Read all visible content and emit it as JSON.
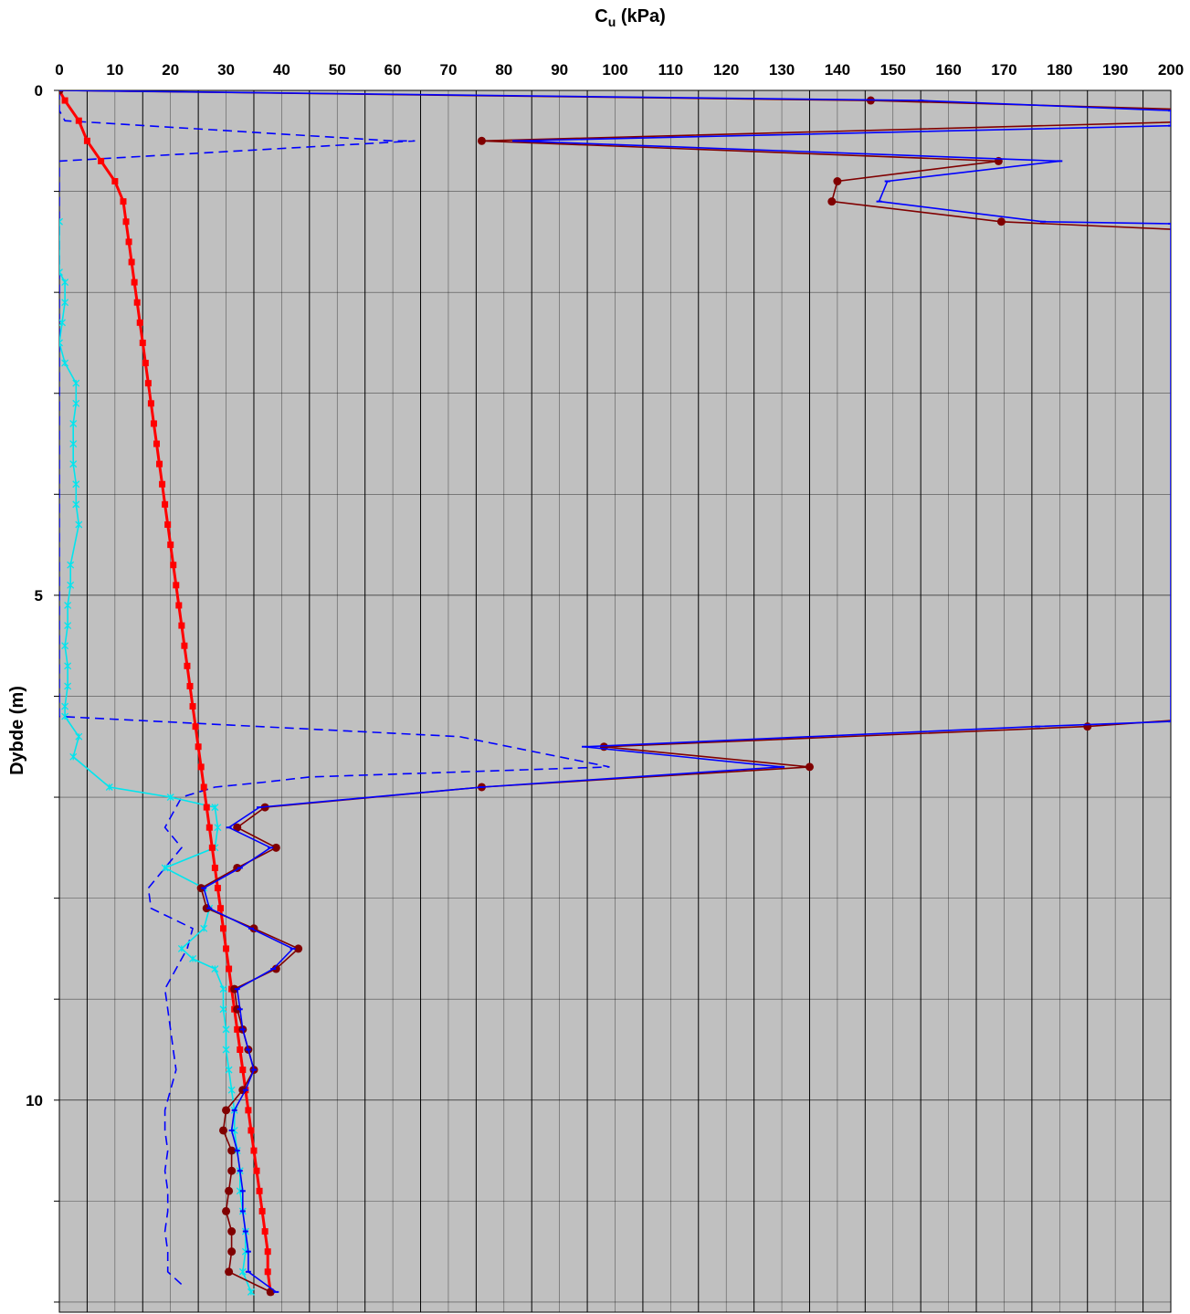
{
  "chart_data": {
    "type": "line",
    "x_axis": {
      "label_main": "C",
      "label_sub": "u",
      "label_unit": " (kPa)",
      "position": "top",
      "range": [
        0,
        200
      ],
      "major_step": 10,
      "minor_step": 5,
      "tick_labels": [
        "0",
        "10",
        "20",
        "30",
        "40",
        "50",
        "60",
        "70",
        "80",
        "90",
        "100",
        "110",
        "120",
        "130",
        "140",
        "150",
        "160",
        "170",
        "180",
        "190",
        "200"
      ]
    },
    "y_axis": {
      "label": "Dybde (m)",
      "range": [
        0,
        12.1
      ],
      "inverted": true,
      "major_step": 5,
      "minor_step": 1,
      "tick_labels": [
        "0",
        "5",
        "10"
      ]
    },
    "grid": true,
    "legend": "none",
    "colors": {
      "plot_background": "#c0c0c0",
      "grid": "#000000",
      "dark_red": "#800000",
      "blue": "#0000ff",
      "dashed_blue": "#0000ff",
      "cyan": "#00e5ee",
      "red": "#ff0000"
    },
    "series": [
      {
        "style": "dark-red-dots",
        "color": "#800000",
        "points": [
          [
            0,
            0
          ],
          [
            146,
            0.1
          ],
          [
            210,
            0.2
          ],
          [
            210,
            0.3
          ],
          [
            76,
            0.5
          ],
          [
            169,
            0.7
          ],
          [
            140,
            0.9
          ],
          [
            139,
            1.1
          ],
          [
            169.5,
            1.3
          ],
          [
            210,
            1.4
          ],
          [
            210,
            6.2
          ],
          [
            185,
            6.3
          ],
          [
            98,
            6.5
          ],
          [
            135,
            6.7
          ],
          [
            76,
            6.9
          ],
          [
            37,
            7.1
          ],
          [
            32,
            7.3
          ],
          [
            39,
            7.5
          ],
          [
            32,
            7.7
          ],
          [
            25.5,
            7.9
          ],
          [
            26.5,
            8.1
          ],
          [
            35,
            8.3
          ],
          [
            43,
            8.5
          ],
          [
            39,
            8.7
          ],
          [
            31.5,
            8.9
          ],
          [
            32,
            9.1
          ],
          [
            33,
            9.3
          ],
          [
            34,
            9.5
          ],
          [
            35,
            9.7
          ],
          [
            33,
            9.9
          ],
          [
            30,
            10.1
          ],
          [
            29.5,
            10.3
          ],
          [
            31,
            10.5
          ],
          [
            31,
            10.7
          ],
          [
            30.5,
            10.9
          ],
          [
            30,
            11.1
          ],
          [
            31,
            11.3
          ],
          [
            31,
            11.5
          ],
          [
            30.5,
            11.7
          ],
          [
            38,
            11.9
          ]
        ]
      },
      {
        "style": "blue-line",
        "color": "#0000ff",
        "points": [
          [
            0,
            0
          ],
          [
            155,
            0.1
          ],
          [
            200,
            0.2
          ],
          [
            200,
            0.35
          ],
          [
            82,
            0.5
          ],
          [
            180,
            0.7
          ],
          [
            149,
            0.9
          ],
          [
            147.5,
            1.1
          ],
          [
            177,
            1.3
          ],
          [
            200,
            1.32
          ],
          [
            200,
            6.25
          ],
          [
            176,
            6.3
          ],
          [
            94.5,
            6.5
          ],
          [
            130,
            6.7
          ],
          [
            76,
            6.9
          ],
          [
            36,
            7.1
          ],
          [
            30.5,
            7.3
          ],
          [
            38,
            7.5
          ],
          [
            32.5,
            7.7
          ],
          [
            26,
            7.9
          ],
          [
            27,
            8.1
          ],
          [
            34.5,
            8.3
          ],
          [
            42,
            8.5
          ],
          [
            38.5,
            8.7
          ],
          [
            32,
            8.9
          ],
          [
            32.5,
            9.1
          ],
          [
            33,
            9.3
          ],
          [
            34,
            9.5
          ],
          [
            35,
            9.7
          ],
          [
            33.5,
            9.9
          ],
          [
            31.5,
            10.1
          ],
          [
            31,
            10.3
          ],
          [
            32,
            10.5
          ],
          [
            32.5,
            10.7
          ],
          [
            33,
            10.9
          ],
          [
            33,
            11.1
          ],
          [
            33.5,
            11.3
          ],
          [
            34,
            11.5
          ],
          [
            34,
            11.7
          ],
          [
            39,
            11.9
          ]
        ]
      },
      {
        "style": "dashed-blue",
        "color": "#0000ff",
        "points": [
          [
            0,
            0
          ],
          [
            0,
            0.2
          ],
          [
            1,
            0.3
          ],
          [
            60,
            0.5
          ],
          [
            64,
            0.5
          ],
          [
            0,
            0.7
          ],
          [
            0,
            1.1
          ],
          [
            0,
            2
          ],
          [
            0,
            4
          ],
          [
            0,
            6
          ],
          [
            0,
            6.2
          ],
          [
            72,
            6.4
          ],
          [
            99,
            6.7
          ],
          [
            45,
            6.8
          ],
          [
            37,
            6.85
          ],
          [
            28,
            6.9
          ],
          [
            22,
            7
          ],
          [
            19,
            7.3
          ],
          [
            22,
            7.5
          ],
          [
            19,
            7.7
          ],
          [
            16,
            7.9
          ],
          [
            16.5,
            8.1
          ],
          [
            24,
            8.3
          ],
          [
            23,
            8.5
          ],
          [
            21,
            8.7
          ],
          [
            19,
            8.9
          ],
          [
            19.5,
            9.1
          ],
          [
            20,
            9.3
          ],
          [
            20.5,
            9.5
          ],
          [
            21,
            9.7
          ],
          [
            20,
            9.9
          ],
          [
            19,
            10.1
          ],
          [
            19,
            10.3
          ],
          [
            19.5,
            10.5
          ],
          [
            19,
            10.7
          ],
          [
            19.5,
            10.9
          ],
          [
            19.5,
            11.1
          ],
          [
            19,
            11.3
          ],
          [
            19.5,
            11.5
          ],
          [
            19.5,
            11.7
          ],
          [
            22.5,
            11.85
          ]
        ]
      },
      {
        "style": "cyan-stars",
        "color": "#00e5ee",
        "points": [
          [
            0,
            1.3
          ],
          [
            0,
            1.8
          ],
          [
            1,
            1.9
          ],
          [
            1,
            2.1
          ],
          [
            0.5,
            2.3
          ],
          [
            0,
            2.5
          ],
          [
            1,
            2.7
          ],
          [
            3,
            2.9
          ],
          [
            3,
            3.1
          ],
          [
            2.5,
            3.3
          ],
          [
            2.5,
            3.5
          ],
          [
            2.5,
            3.7
          ],
          [
            3,
            3.9
          ],
          [
            3,
            4.1
          ],
          [
            3.5,
            4.3
          ],
          [
            2,
            4.7
          ],
          [
            2,
            4.9
          ],
          [
            1.5,
            5.1
          ],
          [
            1.5,
            5.3
          ],
          [
            1,
            5.5
          ],
          [
            1.5,
            5.7
          ],
          [
            1.5,
            5.9
          ],
          [
            1,
            6.1
          ],
          [
            1,
            6.2
          ],
          [
            3.5,
            6.4
          ],
          [
            2.5,
            6.6
          ],
          [
            9,
            6.9
          ],
          [
            20,
            7.0
          ],
          [
            28,
            7.1
          ],
          [
            28.5,
            7.3
          ],
          [
            28,
            7.5
          ],
          [
            19,
            7.7
          ],
          [
            26,
            7.9
          ],
          [
            27,
            8.1
          ],
          [
            26,
            8.3
          ],
          [
            22,
            8.5
          ],
          [
            24,
            8.6
          ],
          [
            28,
            8.7
          ],
          [
            29.5,
            8.9
          ],
          [
            29.5,
            9.1
          ],
          [
            30,
            9.3
          ],
          [
            30,
            9.5
          ],
          [
            30.5,
            9.7
          ],
          [
            31,
            9.9
          ],
          [
            31.5,
            10.1
          ],
          [
            31.5,
            10.3
          ],
          [
            32,
            10.5
          ],
          [
            32.5,
            10.7
          ],
          [
            32.5,
            10.9
          ],
          [
            33,
            11.1
          ],
          [
            33.5,
            11.3
          ],
          [
            33.5,
            11.5
          ],
          [
            33,
            11.7
          ],
          [
            34.5,
            11.9
          ]
        ]
      },
      {
        "style": "red-squares",
        "color": "#ff0000",
        "points": [
          [
            0,
            0
          ],
          [
            1,
            0.1
          ],
          [
            3.5,
            0.3
          ],
          [
            5,
            0.5
          ],
          [
            7.5,
            0.7
          ],
          [
            10,
            0.9
          ],
          [
            11.5,
            1.1
          ],
          [
            12,
            1.3
          ],
          [
            12.5,
            1.5
          ],
          [
            13,
            1.7
          ],
          [
            13.5,
            1.9
          ],
          [
            14,
            2.1
          ],
          [
            14.5,
            2.3
          ],
          [
            15,
            2.5
          ],
          [
            15.5,
            2.7
          ],
          [
            16,
            2.9
          ],
          [
            16.5,
            3.1
          ],
          [
            17,
            3.3
          ],
          [
            17.5,
            3.5
          ],
          [
            18,
            3.7
          ],
          [
            18.5,
            3.9
          ],
          [
            19,
            4.1
          ],
          [
            19.5,
            4.3
          ],
          [
            20,
            4.5
          ],
          [
            20.5,
            4.7
          ],
          [
            21,
            4.9
          ],
          [
            21.5,
            5.1
          ],
          [
            22,
            5.3
          ],
          [
            22.5,
            5.5
          ],
          [
            23,
            5.7
          ],
          [
            23.5,
            5.9
          ],
          [
            24,
            6.1
          ],
          [
            24.5,
            6.3
          ],
          [
            25,
            6.5
          ],
          [
            25.5,
            6.7
          ],
          [
            26,
            6.9
          ],
          [
            26.5,
            7.1
          ],
          [
            27,
            7.3
          ],
          [
            27.5,
            7.5
          ],
          [
            28,
            7.7
          ],
          [
            28.5,
            7.9
          ],
          [
            29,
            8.1
          ],
          [
            29.5,
            8.3
          ],
          [
            30,
            8.5
          ],
          [
            30.5,
            8.7
          ],
          [
            31,
            8.9
          ],
          [
            31.5,
            9.1
          ],
          [
            32,
            9.3
          ],
          [
            32.5,
            9.5
          ],
          [
            33,
            9.7
          ],
          [
            33.5,
            9.9
          ],
          [
            34,
            10.1
          ],
          [
            34.5,
            10.3
          ],
          [
            35,
            10.5
          ],
          [
            35.5,
            10.7
          ],
          [
            36,
            10.9
          ],
          [
            36.5,
            11.1
          ],
          [
            37,
            11.3
          ],
          [
            37.5,
            11.5
          ],
          [
            37.5,
            11.7
          ],
          [
            38,
            11.9
          ]
        ]
      }
    ]
  }
}
